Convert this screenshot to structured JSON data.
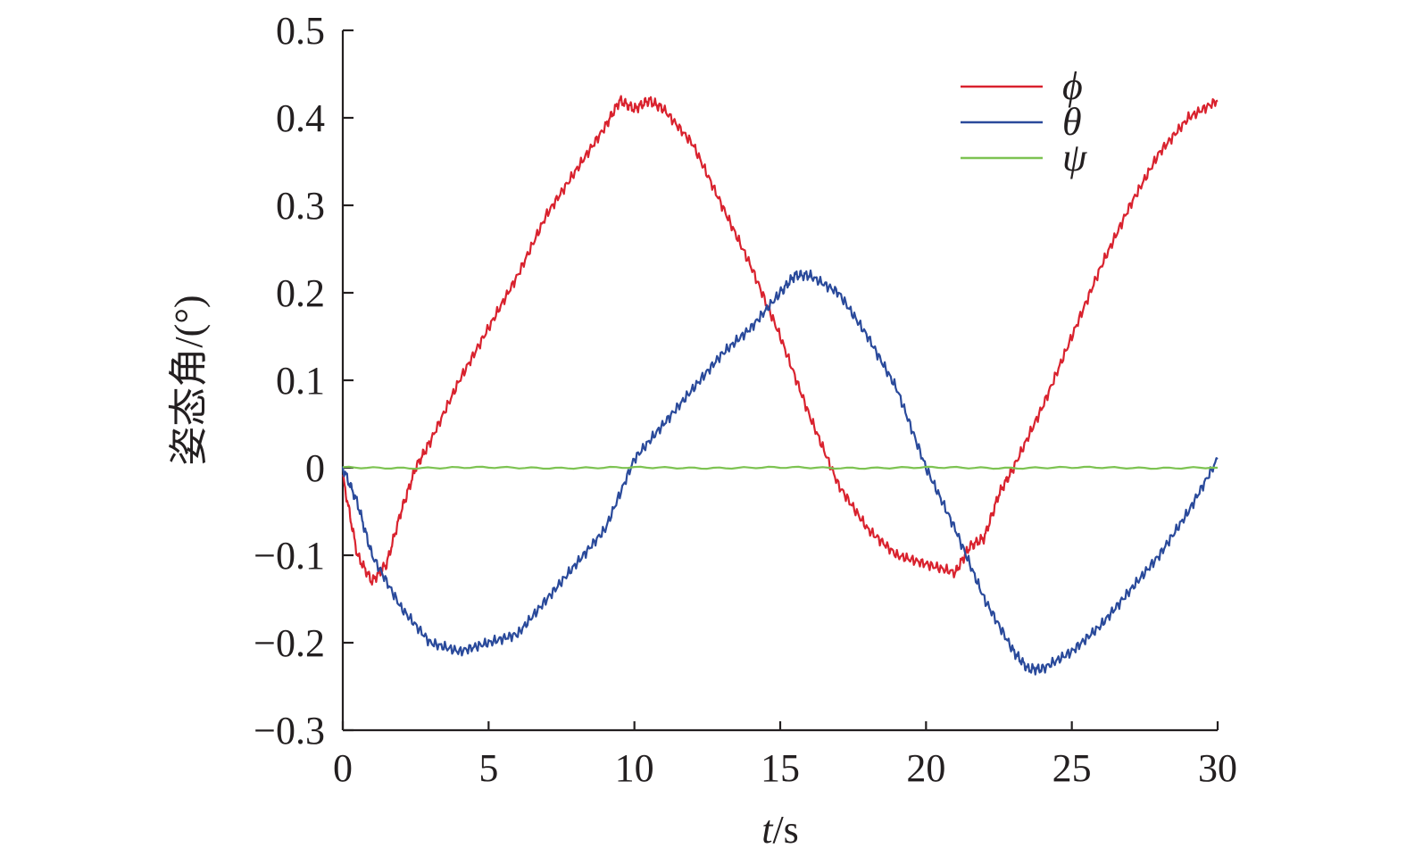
{
  "chart_data": {
    "type": "line",
    "title": "",
    "xlabel_italic": "t",
    "xlabel_unit": "/s",
    "ylabel": "姿态角/(°)",
    "xlim": [
      0,
      30
    ],
    "ylim": [
      -0.3,
      0.5
    ],
    "xticks": [
      {
        "value": 0,
        "label": "0"
      },
      {
        "value": 5,
        "label": "5"
      },
      {
        "value": 10,
        "label": "10"
      },
      {
        "value": 15,
        "label": "15"
      },
      {
        "value": 20,
        "label": "20"
      },
      {
        "value": 25,
        "label": "25"
      },
      {
        "value": 30,
        "label": "30"
      }
    ],
    "yticks": [
      {
        "value": -0.3,
        "label": "−0.3"
      },
      {
        "value": -0.2,
        "label": "−0.2"
      },
      {
        "value": -0.1,
        "label": "−0.1"
      },
      {
        "value": 0,
        "label": "0"
      },
      {
        "value": 0.1,
        "label": "0.1"
      },
      {
        "value": 0.2,
        "label": "0.2"
      },
      {
        "value": 0.3,
        "label": "0.3"
      },
      {
        "value": 0.4,
        "label": "0.4"
      },
      {
        "value": 0.5,
        "label": "0.5"
      }
    ],
    "grid": false,
    "legend_position": "top-right",
    "series": [
      {
        "name": "ϕ",
        "color": "#d9222e",
        "x": [
          0,
          0.5,
          1,
          1.5,
          2,
          2.5,
          3,
          4,
          5,
          6,
          7,
          8,
          9,
          9.5,
          10,
          10.5,
          11,
          12,
          13,
          14,
          15,
          16,
          17,
          18,
          19,
          20,
          21,
          21.5,
          22,
          22.5,
          23,
          24,
          25,
          26,
          27,
          28,
          29,
          30
        ],
        "y": [
          -0.01,
          -0.1,
          -0.13,
          -0.11,
          -0.05,
          0.0,
          0.03,
          0.1,
          0.16,
          0.22,
          0.29,
          0.34,
          0.39,
          0.42,
          0.41,
          0.42,
          0.41,
          0.37,
          0.3,
          0.23,
          0.15,
          0.06,
          -0.02,
          -0.07,
          -0.1,
          -0.11,
          -0.12,
          -0.09,
          -0.08,
          -0.03,
          0.0,
          0.07,
          0.15,
          0.23,
          0.3,
          0.36,
          0.4,
          0.42
        ]
      },
      {
        "name": "θ",
        "color": "#2a4a9b",
        "x": [
          0,
          0.5,
          1,
          2,
          3,
          4,
          5,
          6,
          7,
          8,
          9,
          10,
          11,
          12,
          13,
          14,
          15,
          15.5,
          16,
          17,
          18,
          19,
          20,
          21,
          22,
          23,
          23.5,
          24,
          25,
          26,
          27,
          28,
          29,
          30
        ],
        "y": [
          0.0,
          -0.04,
          -0.1,
          -0.16,
          -0.2,
          -0.21,
          -0.2,
          -0.19,
          -0.15,
          -0.11,
          -0.07,
          0.01,
          0.05,
          0.09,
          0.13,
          0.16,
          0.2,
          0.22,
          0.22,
          0.2,
          0.15,
          0.09,
          0.0,
          -0.07,
          -0.15,
          -0.21,
          -0.23,
          -0.23,
          -0.21,
          -0.18,
          -0.14,
          -0.1,
          -0.05,
          0.01
        ]
      },
      {
        "name": "ψ",
        "color": "#7dc352",
        "x": [
          0,
          5,
          10,
          15,
          20,
          25,
          30
        ],
        "y": [
          0.0,
          0.0,
          0.0,
          0.0,
          0.0,
          0.0,
          0.0
        ]
      }
    ]
  }
}
